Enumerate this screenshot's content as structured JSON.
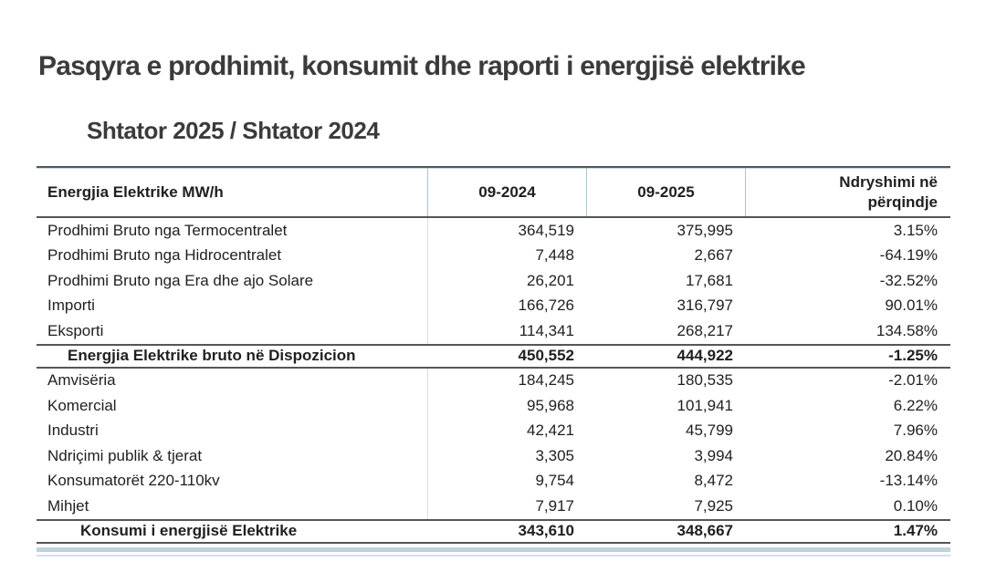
{
  "page": {
    "title": "Pasqyra e prodhimit, konsumit dhe raporti i energjisë elektrike",
    "subtitle": "Shtator 2025 / Shtator 2024"
  },
  "colors": {
    "title_text": "#3b3b3b",
    "table_text": "#1f1f1f",
    "section_line": "#565656",
    "column_separator": "#a9c2d1",
    "bottom_accent_band": "#bdd3dd"
  },
  "chart_data": {
    "type": "table",
    "title": "Pasqyra e prodhimit, konsumit dhe raporti i energjisë elektrike",
    "subtitle": "Shtator 2025 / Shtator 2024",
    "columns": [
      "Energjia Elektrike MW/h",
      "09-2024",
      "09-2025",
      "Ndryshimi në përqindje"
    ],
    "header": {
      "c1": "Energjia Elektrike MW/h",
      "c2": "09-2024",
      "c3": "09-2025",
      "c4_line1": "Ndryshimi në",
      "c4_line2": "përqindje"
    },
    "sections": [
      {
        "rows": [
          {
            "label": "Prodhimi Bruto nga Termocentralet",
            "y2024": "364,519",
            "y2025": "375,995",
            "change": "3.15%"
          },
          {
            "label": "Prodhimi Bruto nga Hidrocentralet",
            "y2024": "7,448",
            "y2025": "2,667",
            "change": "-64.19%"
          },
          {
            "label": "Prodhimi Bruto nga Era dhe ajo Solare",
            "y2024": "26,201",
            "y2025": "17,681",
            "change": "-32.52%"
          },
          {
            "label": "Importi",
            "y2024": "166,726",
            "y2025": "316,797",
            "change": "90.01%"
          },
          {
            "label": "Eksporti",
            "y2024": "114,341",
            "y2025": "268,217",
            "change": "134.58%"
          }
        ],
        "summary": {
          "label": "Energjia Elektrike bruto në Dispozicion",
          "y2024": "450,552",
          "y2025": "444,922",
          "change": "-1.25%"
        }
      },
      {
        "rows": [
          {
            "label": "Amvisëria",
            "y2024": "184,245",
            "y2025": "180,535",
            "change": "-2.01%"
          },
          {
            "label": "Komercial",
            "y2024": "95,968",
            "y2025": "101,941",
            "change": "6.22%"
          },
          {
            "label": "Industri",
            "y2024": "42,421",
            "y2025": "45,799",
            "change": "7.96%"
          },
          {
            "label": "Ndriçimi publik & tjerat",
            "y2024": "3,305",
            "y2025": "3,994",
            "change": "20.84%"
          },
          {
            "label": "Konsumatorët  220-110kv",
            "y2024": "9,754",
            "y2025": "8,472",
            "change": "-13.14%"
          },
          {
            "label": "Mihjet",
            "y2024": "7,917",
            "y2025": "7,925",
            "change": "0.10%"
          }
        ],
        "summary": {
          "label": "Konsumi i energjisë Elektrike",
          "y2024": "343,610",
          "y2025": "348,667",
          "change": "1.47%"
        }
      }
    ]
  }
}
